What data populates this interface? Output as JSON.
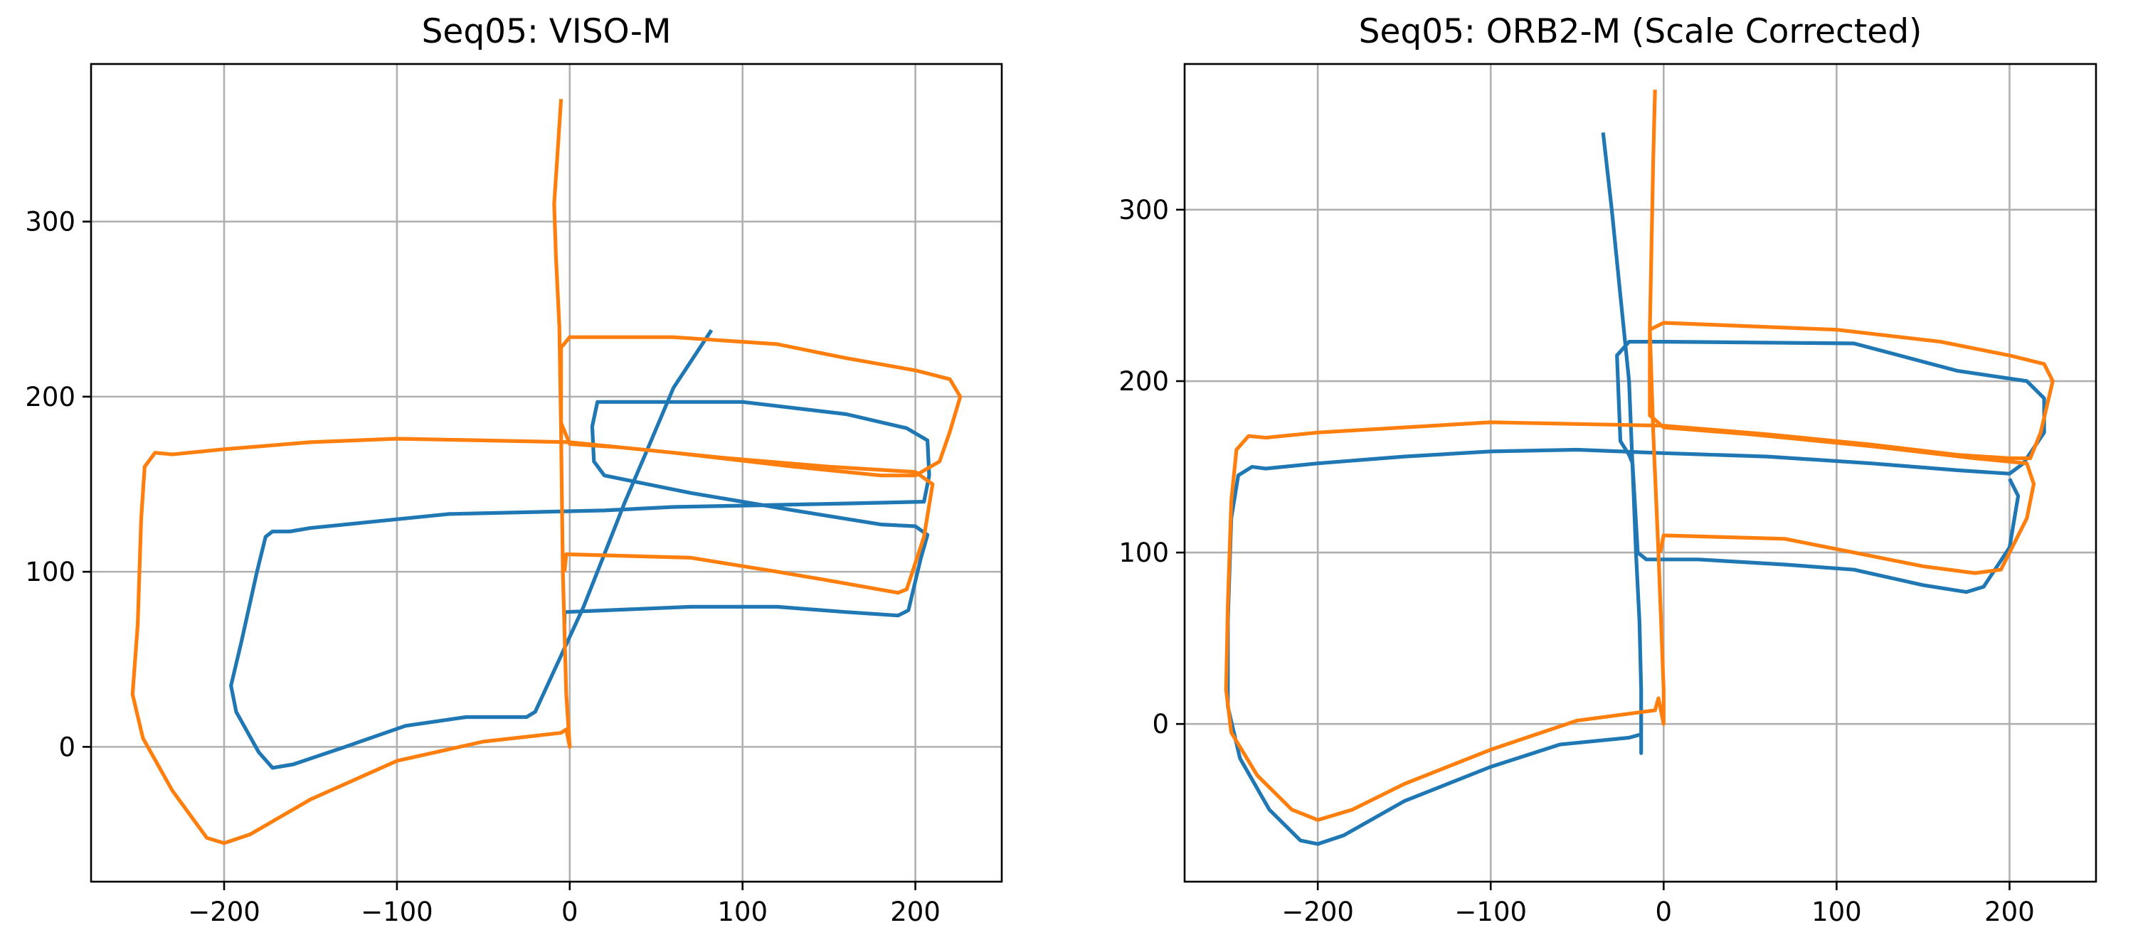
{
  "colors": {
    "blue": "#1f77b4",
    "orange": "#ff7f0e",
    "grid": "#b0b0b0"
  },
  "chart_data": [
    {
      "type": "line",
      "title": "Seq05: VISO-M",
      "xlabel": "",
      "ylabel": "",
      "xlim": [
        -277,
        250
      ],
      "ylim": [
        -77,
        390
      ],
      "xticks": [
        -200,
        -100,
        0,
        100,
        200
      ],
      "xtick_labels": [
        "−200",
        "−100",
        "0",
        "100",
        "200"
      ],
      "yticks": [
        0,
        100,
        200,
        300
      ],
      "ytick_labels": [
        "0",
        "100",
        "200",
        "300"
      ],
      "grid": true,
      "legend": null,
      "series": [
        {
          "color": "#1f77b4",
          "points": [
            [
              82,
              238
            ],
            [
              60,
              205
            ],
            [
              45,
              170
            ],
            [
              32,
              140
            ],
            [
              20,
              110
            ],
            [
              8,
              80
            ],
            [
              -6,
              50
            ],
            [
              -20,
              20
            ],
            [
              -25,
              17
            ],
            [
              -60,
              17
            ],
            [
              -95,
              12
            ],
            [
              -130,
              0
            ],
            [
              -160,
              -10
            ],
            [
              -172,
              -12
            ],
            [
              -180,
              -3
            ],
            [
              -193,
              20
            ],
            [
              -196,
              35
            ],
            [
              -190,
              60
            ],
            [
              -181,
              100
            ],
            [
              -176,
              120
            ],
            [
              -172,
              123
            ],
            [
              -162,
              123
            ],
            [
              -150,
              125
            ],
            [
              -120,
              128
            ],
            [
              -70,
              133
            ],
            [
              20,
              135
            ],
            [
              60,
              137
            ],
            [
              110,
              138
            ],
            [
              160,
              139
            ],
            [
              205,
              140
            ],
            [
              208,
              155
            ],
            [
              207,
              175
            ],
            [
              195,
              182
            ],
            [
              160,
              190
            ],
            [
              100,
              197
            ],
            [
              16,
              197
            ],
            [
              13,
              183
            ],
            [
              14,
              163
            ],
            [
              20,
              155
            ],
            [
              70,
              145
            ],
            [
              130,
              135
            ],
            [
              180,
              127
            ],
            [
              200,
              126
            ],
            [
              207,
              121
            ],
            [
              203,
              107
            ],
            [
              196,
              78
            ],
            [
              190,
              75
            ],
            [
              160,
              77
            ],
            [
              120,
              80
            ],
            [
              70,
              80
            ],
            [
              -3,
              77
            ],
            [
              -3,
              70
            ]
          ]
        },
        {
          "color": "#ff7f0e",
          "points": [
            [
              -5,
              370
            ],
            [
              -7,
              340
            ],
            [
              -9,
              310
            ],
            [
              -8,
              280
            ],
            [
              -6,
              240
            ],
            [
              -5,
              180
            ],
            [
              -4,
              100
            ],
            [
              -2,
              30
            ],
            [
              0,
              0
            ],
            [
              -2,
              10
            ],
            [
              -5,
              8
            ],
            [
              -50,
              3
            ],
            [
              -100,
              -8
            ],
            [
              -150,
              -30
            ],
            [
              -185,
              -50
            ],
            [
              -200,
              -55
            ],
            [
              -210,
              -52
            ],
            [
              -230,
              -25
            ],
            [
              -247,
              5
            ],
            [
              -253,
              30
            ],
            [
              -250,
              70
            ],
            [
              -248,
              130
            ],
            [
              -246,
              160
            ],
            [
              -240,
              168
            ],
            [
              -230,
              167
            ],
            [
              -200,
              170
            ],
            [
              -150,
              174
            ],
            [
              -100,
              176
            ],
            [
              -50,
              175
            ],
            [
              0,
              174
            ],
            [
              60,
              168
            ],
            [
              130,
              160
            ],
            [
              180,
              155
            ],
            [
              200,
              155
            ],
            [
              214,
              163
            ],
            [
              220,
              180
            ],
            [
              226,
              200
            ],
            [
              220,
              210
            ],
            [
              200,
              215
            ],
            [
              160,
              222
            ],
            [
              120,
              230
            ],
            [
              60,
              234
            ],
            [
              0,
              234
            ],
            [
              -5,
              228
            ],
            [
              -5,
              185
            ],
            [
              0,
              173
            ],
            [
              30,
              171
            ],
            [
              90,
              165
            ],
            [
              150,
              160
            ],
            [
              200,
              157
            ],
            [
              210,
              150
            ],
            [
              205,
              120
            ],
            [
              195,
              90
            ],
            [
              190,
              88
            ],
            [
              150,
              95
            ],
            [
              120,
              100
            ],
            [
              70,
              108
            ],
            [
              -2,
              110
            ],
            [
              -3,
              100
            ]
          ]
        }
      ]
    },
    {
      "type": "line",
      "title": "Seq05: ORB2-M (Scale Corrected)",
      "xlabel": "",
      "ylabel": "",
      "xlim": [
        -277,
        250
      ],
      "ylim": [
        -92,
        385
      ],
      "xticks": [
        -200,
        -100,
        0,
        100,
        200
      ],
      "xtick_labels": [
        "−200",
        "−100",
        "0",
        "100",
        "200"
      ],
      "yticks": [
        0,
        100,
        200,
        300
      ],
      "ytick_labels": [
        "0",
        "100",
        "200",
        "300"
      ],
      "grid": true,
      "legend": null,
      "series": [
        {
          "color": "#1f77b4",
          "points": [
            [
              -35,
              345
            ],
            [
              -30,
              300
            ],
            [
              -25,
              250
            ],
            [
              -20,
              200
            ],
            [
              -18,
              150
            ],
            [
              -16,
              100
            ],
            [
              -14,
              60
            ],
            [
              -13,
              20
            ],
            [
              -13,
              -17
            ],
            [
              -13,
              -6
            ],
            [
              -20,
              -8
            ],
            [
              -60,
              -12
            ],
            [
              -100,
              -25
            ],
            [
              -150,
              -45
            ],
            [
              -185,
              -65
            ],
            [
              -200,
              -70
            ],
            [
              -210,
              -68
            ],
            [
              -228,
              -50
            ],
            [
              -245,
              -20
            ],
            [
              -252,
              10
            ],
            [
              -252,
              60
            ],
            [
              -250,
              120
            ],
            [
              -246,
              145
            ],
            [
              -238,
              150
            ],
            [
              -230,
              149
            ],
            [
              -200,
              152
            ],
            [
              -150,
              156
            ],
            [
              -100,
              159
            ],
            [
              -50,
              160
            ],
            [
              0,
              158
            ],
            [
              60,
              156
            ],
            [
              120,
              152
            ],
            [
              170,
              148
            ],
            [
              200,
              146
            ],
            [
              208,
              152
            ],
            [
              220,
              170
            ],
            [
              220,
              190
            ],
            [
              210,
              200
            ],
            [
              170,
              206
            ],
            [
              110,
              222
            ],
            [
              0,
              223
            ],
            [
              -20,
              223
            ],
            [
              -27,
              215
            ],
            [
              -25,
              165
            ],
            [
              -20,
              157
            ],
            [
              -18,
              152
            ],
            [
              -15,
              100
            ],
            [
              -10,
              96
            ],
            [
              20,
              96
            ],
            [
              70,
              93
            ],
            [
              110,
              90
            ],
            [
              150,
              81
            ],
            [
              175,
              77
            ],
            [
              185,
              80
            ],
            [
              200,
              103
            ],
            [
              205,
              133
            ],
            [
              200,
              143
            ]
          ]
        },
        {
          "color": "#ff7f0e",
          "points": [
            [
              -5,
              370
            ],
            [
              -6,
              330
            ],
            [
              -7,
              280
            ],
            [
              -8,
              230
            ],
            [
              -6,
              170
            ],
            [
              -3,
              100
            ],
            [
              0,
              20
            ],
            [
              0,
              0
            ],
            [
              -3,
              15
            ],
            [
              -5,
              8
            ],
            [
              -50,
              2
            ],
            [
              -100,
              -15
            ],
            [
              -150,
              -35
            ],
            [
              -180,
              -50
            ],
            [
              -200,
              -56
            ],
            [
              -215,
              -50
            ],
            [
              -235,
              -30
            ],
            [
              -250,
              -5
            ],
            [
              -253,
              20
            ],
            [
              -252,
              70
            ],
            [
              -250,
              130
            ],
            [
              -247,
              160
            ],
            [
              -240,
              168
            ],
            [
              -230,
              167
            ],
            [
              -200,
              170
            ],
            [
              -150,
              173
            ],
            [
              -100,
              176
            ],
            [
              -50,
              175
            ],
            [
              0,
              174
            ],
            [
              60,
              169
            ],
            [
              120,
              163
            ],
            [
              170,
              157
            ],
            [
              200,
              155
            ],
            [
              212,
              155
            ],
            [
              218,
              170
            ],
            [
              225,
              200
            ],
            [
              220,
              210
            ],
            [
              200,
              215
            ],
            [
              160,
              223
            ],
            [
              100,
              230
            ],
            [
              0,
              234
            ],
            [
              -8,
              230
            ],
            [
              -8,
              180
            ],
            [
              0,
              173
            ],
            [
              50,
              169
            ],
            [
              120,
              162
            ],
            [
              180,
              155
            ],
            [
              210,
              152
            ],
            [
              214,
              140
            ],
            [
              210,
              120
            ],
            [
              195,
              90
            ],
            [
              180,
              88
            ],
            [
              150,
              92
            ],
            [
              110,
              100
            ],
            [
              70,
              108
            ],
            [
              0,
              110
            ],
            [
              -2,
              100
            ]
          ]
        }
      ]
    }
  ]
}
